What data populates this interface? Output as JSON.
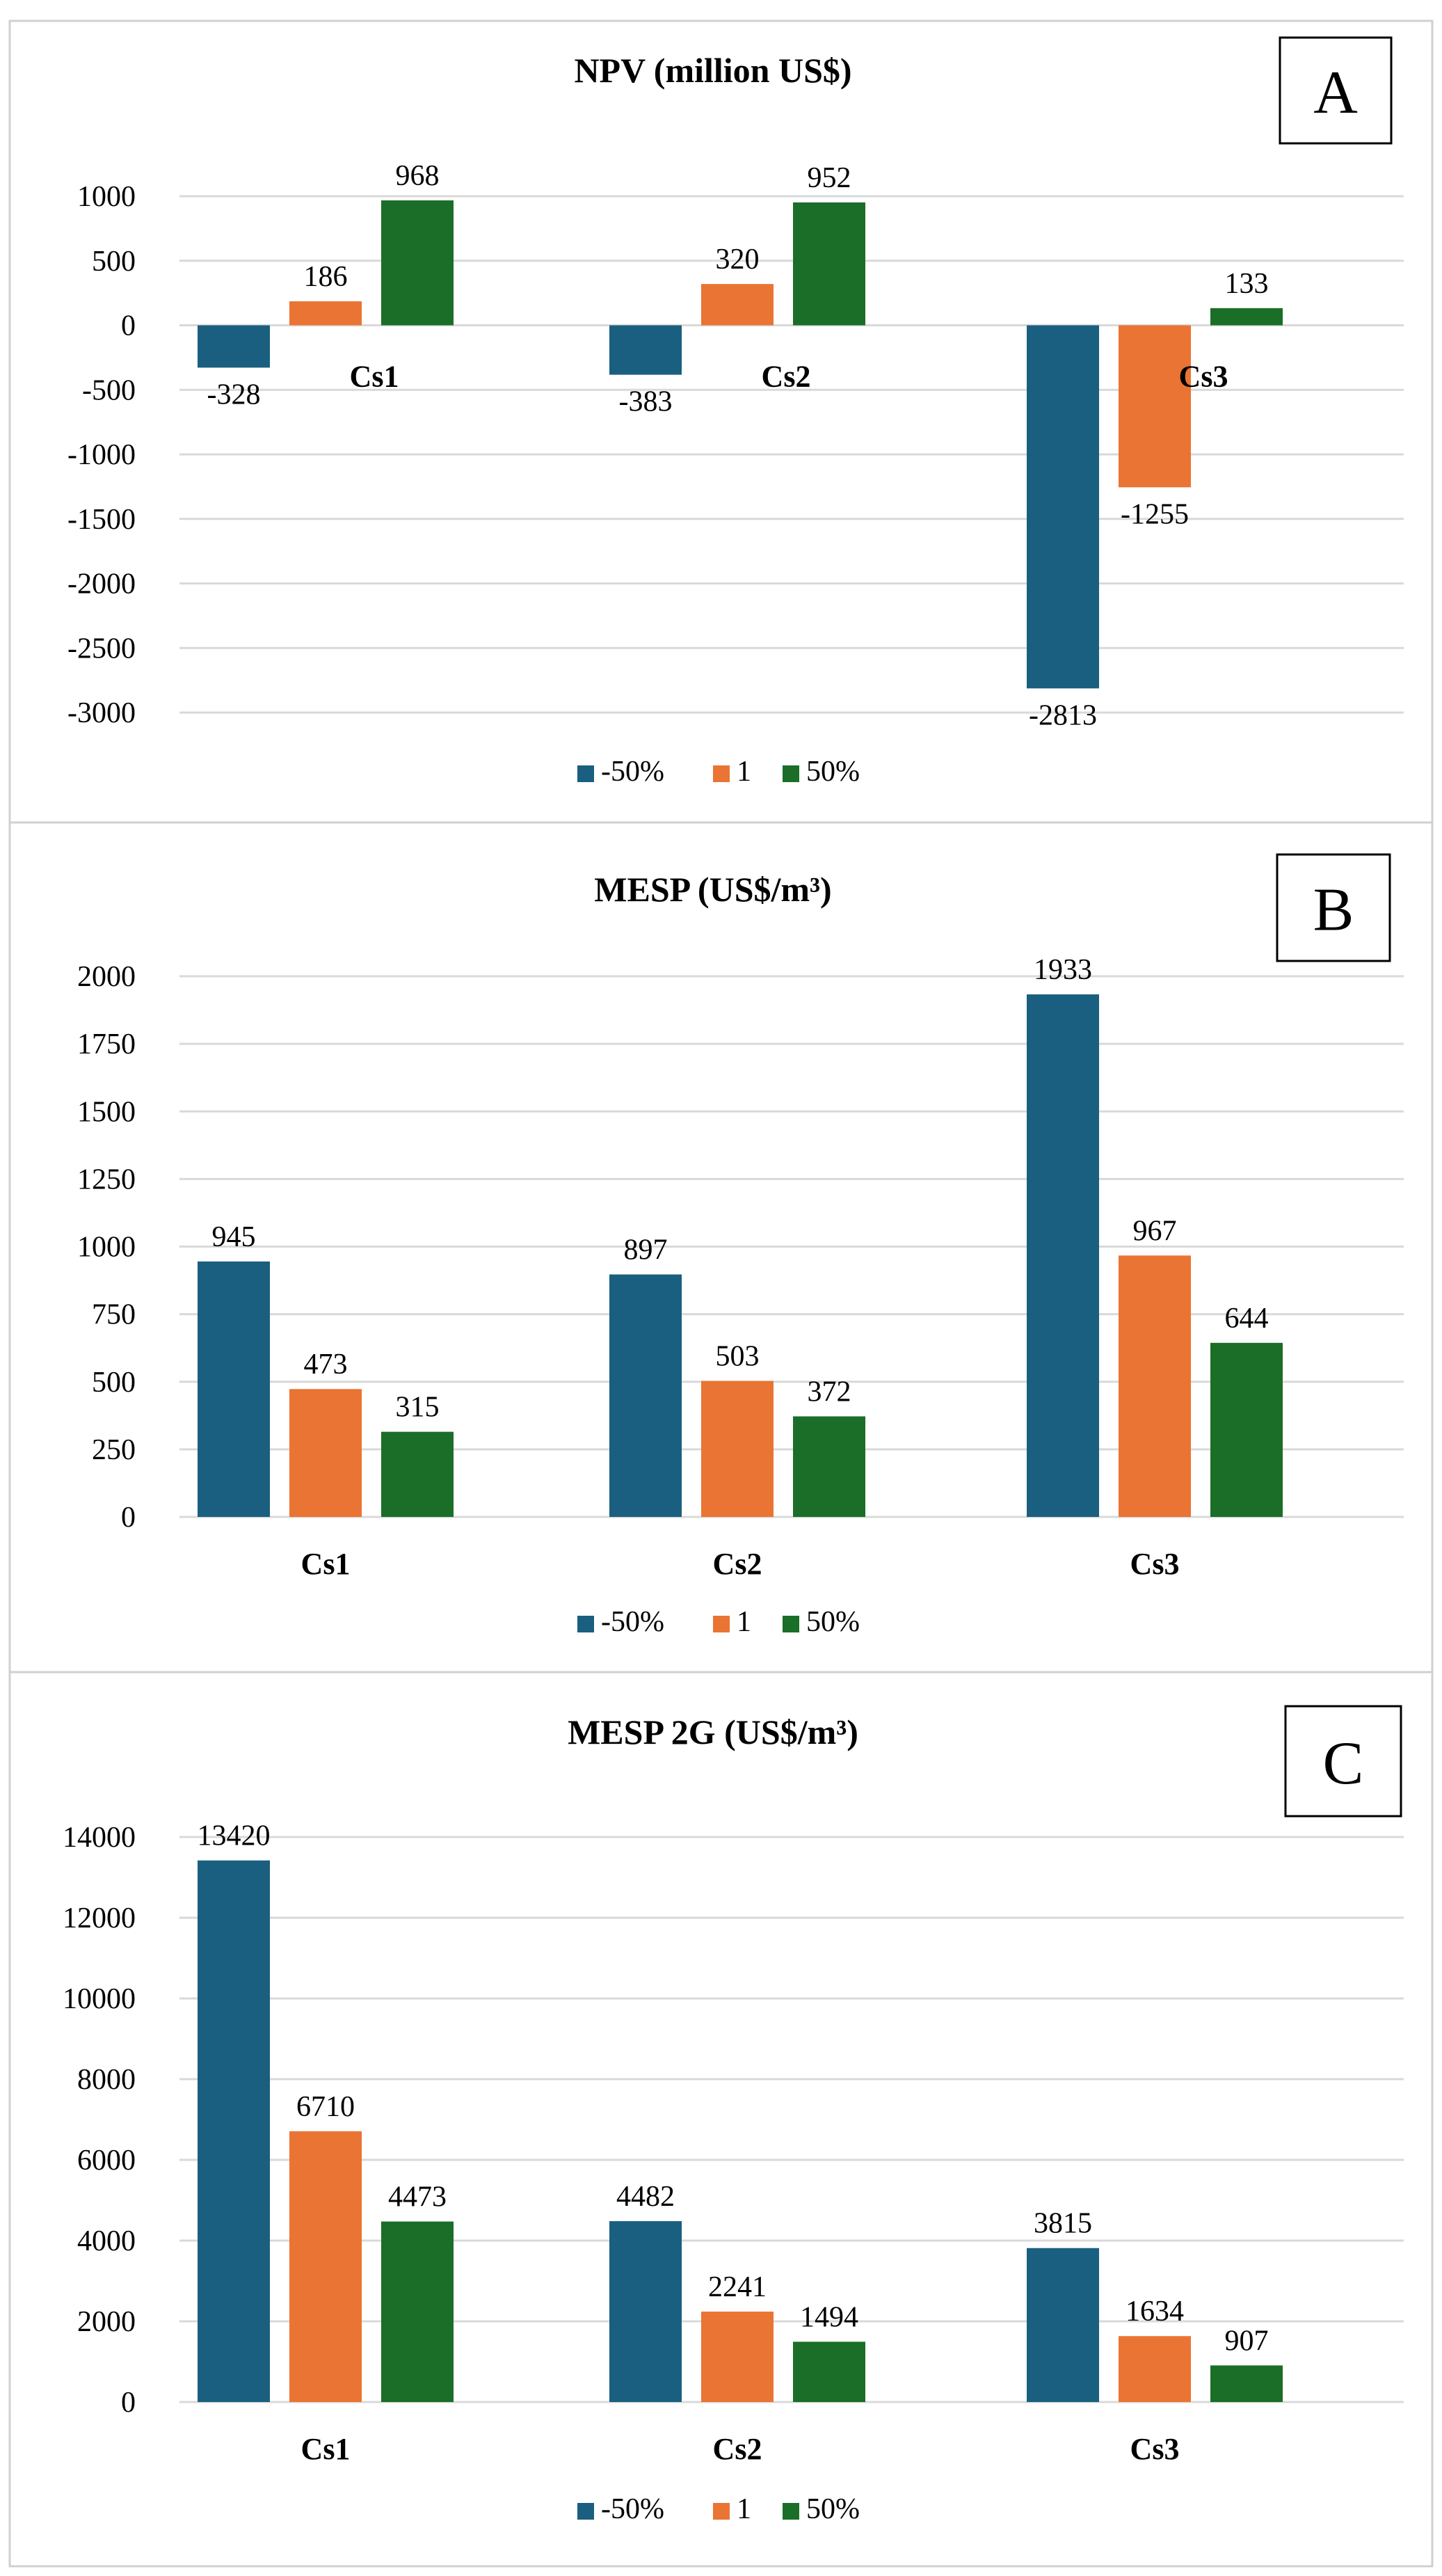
{
  "colors": {
    "neg50": "#1a5f7f",
    "base": "#ea7433",
    "pos50": "#1a6e27",
    "grid": "#d9d9d9",
    "border": "#d0d0d0"
  },
  "legend": [
    "-50%",
    "1",
    "50%"
  ],
  "chart_data": [
    {
      "type": "bar",
      "panel": "A",
      "title": "NPV (million  US$)",
      "categories": [
        "Cs1",
        "Cs2",
        "Cs3"
      ],
      "ylim": [
        -3000,
        1000
      ],
      "yticks": [
        1000,
        500,
        0,
        -500,
        -1000,
        -1500,
        -2000,
        -2500,
        -3000
      ],
      "grid": true,
      "legend_position": "bottom",
      "series": [
        {
          "name": "-50%",
          "values": [
            -328,
            -383,
            -2813
          ]
        },
        {
          "name": "1",
          "values": [
            186,
            320,
            -1255
          ]
        },
        {
          "name": "50%",
          "values": [
            968,
            952,
            133
          ]
        }
      ]
    },
    {
      "type": "bar",
      "panel": "B",
      "title": "MESP (US$/m³)",
      "categories": [
        "Cs1",
        "Cs2",
        "Cs3"
      ],
      "ylim": [
        0,
        2000
      ],
      "yticks": [
        2000,
        1750,
        1500,
        1250,
        1000,
        750,
        500,
        250,
        0
      ],
      "grid": true,
      "legend_position": "bottom",
      "series": [
        {
          "name": "-50%",
          "values": [
            945,
            897,
            1933
          ]
        },
        {
          "name": "1",
          "values": [
            473,
            503,
            967
          ]
        },
        {
          "name": "50%",
          "values": [
            315,
            372,
            644
          ]
        }
      ]
    },
    {
      "type": "bar",
      "panel": "C",
      "title": "MESP 2G (US$/m³)",
      "categories": [
        "Cs1",
        "Cs2",
        "Cs3"
      ],
      "ylim": [
        0,
        14000
      ],
      "yticks": [
        14000,
        12000,
        10000,
        8000,
        6000,
        4000,
        2000,
        0
      ],
      "grid": true,
      "legend_position": "bottom",
      "series": [
        {
          "name": "-50%",
          "values": [
            13420,
            4482,
            3815
          ]
        },
        {
          "name": "1",
          "values": [
            6710,
            2241,
            1634
          ]
        },
        {
          "name": "50%",
          "values": [
            4473,
            1494,
            907
          ]
        }
      ]
    }
  ]
}
